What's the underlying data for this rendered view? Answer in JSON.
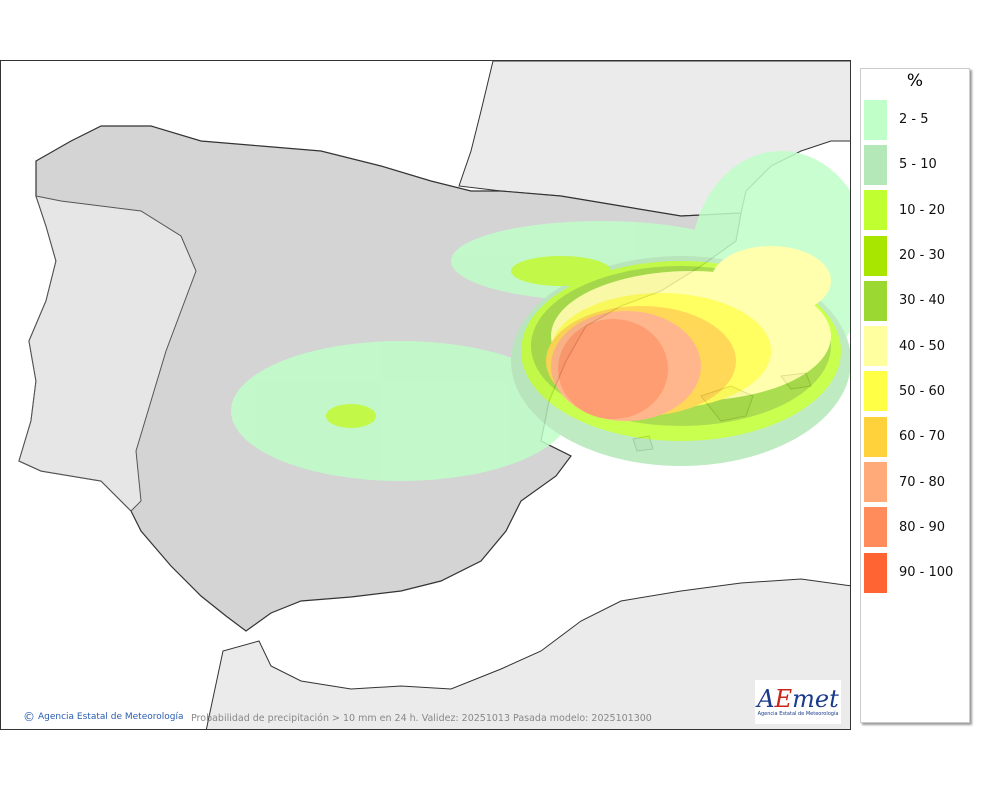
{
  "map": {
    "caption": "Probabilidad de precipitación > 10 mm en 24 h. Validez: 20251013 Pasada modelo: 2025101300",
    "credit": "Agencia Estatal de Meteorología",
    "logo": {
      "text": "AEMet",
      "subtitle": "Agencia Estatal de Meteorología"
    },
    "colors": {
      "sea": "#ffffff",
      "foreign_land": "#ebebeb",
      "spain_land": "#cfcfcf",
      "portugal_land": "#e6e6e6"
    }
  },
  "legend": {
    "title": "%",
    "items": [
      {
        "label": "2 - 5",
        "color": "#c0ffc8"
      },
      {
        "label": "5 - 10",
        "color": "#b4e8b8"
      },
      {
        "label": "10 - 20",
        "color": "#c0ff30"
      },
      {
        "label": "20 - 30",
        "color": "#a8e600"
      },
      {
        "label": "30 - 40",
        "color": "#9cd832"
      },
      {
        "label": "40 - 50",
        "color": "#ffffa0"
      },
      {
        "label": "50 - 60",
        "color": "#ffff46"
      },
      {
        "label": "60 - 70",
        "color": "#ffd23c"
      },
      {
        "label": "70 - 80",
        "color": "#ffaa78"
      },
      {
        "label": "80 - 90",
        "color": "#ff8c5a"
      },
      {
        "label": "90 - 100",
        "color": "#ff6432"
      }
    ]
  }
}
